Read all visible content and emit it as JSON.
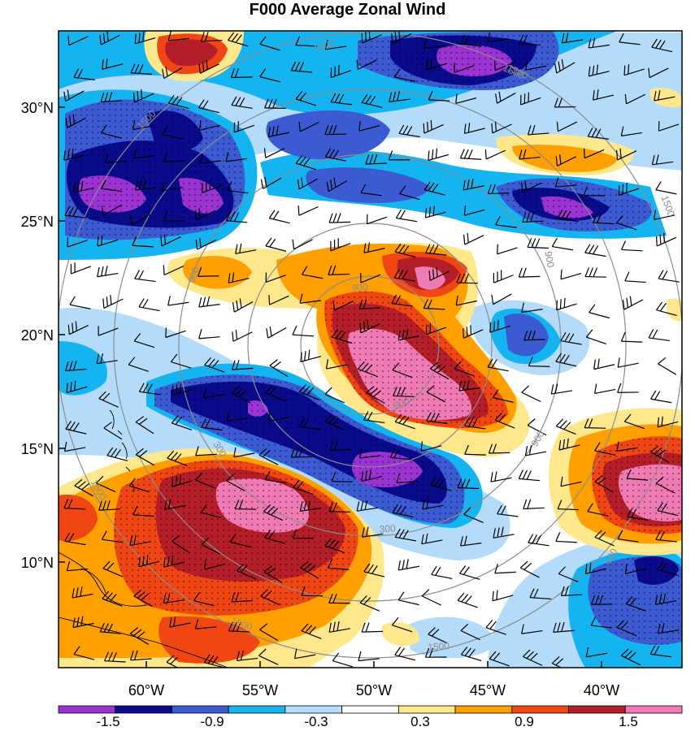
{
  "title": "F000 Average Zonal Wind",
  "lat_ticks": [
    "30°N",
    "25°N",
    "20°N",
    "15°N",
    "10°N"
  ],
  "lon_ticks": [
    "60°W",
    "55°W",
    "50°W",
    "45°W",
    "40°W"
  ],
  "colorbar": {
    "labels": [
      "-1.5",
      "-0.9",
      "-0.3",
      "0.3",
      "0.9",
      "1.5"
    ],
    "colors": [
      "#9b32d2",
      "#0a0a8c",
      "#3c5ad2",
      "#14b4f0",
      "#b4dcfa",
      "#ffffff",
      "#ffe88c",
      "#ffa000",
      "#f04614",
      "#b41e28",
      "#f07ab4"
    ]
  },
  "contour_labels": [
    "1500",
    "1500",
    "1500",
    "900",
    "900",
    "900",
    "900",
    "300",
    "300",
    "1500",
    "1500",
    "900",
    "900",
    "1500",
    "1500",
    "1500"
  ],
  "palette": {
    "purple": "#9b32d2",
    "navy": "#0a0a8c",
    "blue": "#3c5ad2",
    "cyan": "#14b4f0",
    "lightblue": "#b4dcfa",
    "lightyellow": "#ffe88c",
    "orange": "#ffa000",
    "redorange": "#f04614",
    "darkred": "#b41e28",
    "pink": "#f07ab4"
  }
}
